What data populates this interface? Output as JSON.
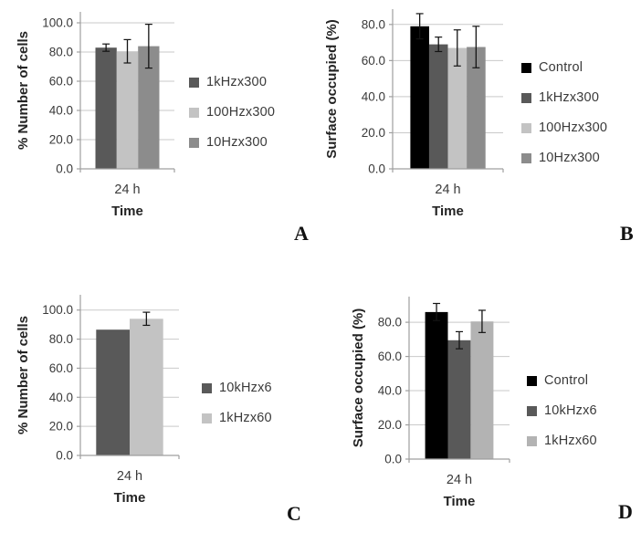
{
  "figure": {
    "description_colors": {
      "black": "#000000",
      "dark_gray": "#595959",
      "medium_gray": "#8c8c8c",
      "light_gray": "#c3c3c3"
    }
  },
  "chart_data": [
    {
      "type": "bar",
      "panel_label": "A",
      "ylabel": "% Number of cells",
      "xlabel": "Time",
      "categories": [
        "24 h"
      ],
      "yticks": [
        0,
        20,
        40,
        60,
        80,
        100
      ],
      "ytick_labels": [
        "0.0",
        "20.0",
        "40.0",
        "60.0",
        "80.0",
        "100.0"
      ],
      "ylim": [
        0,
        107.5
      ],
      "grid": true,
      "legend_position": "right",
      "series": [
        {
          "name": "1kHzx300",
          "color": "#595959",
          "values": [
            83
          ],
          "errors": [
            2.5
          ]
        },
        {
          "name": "100Hzx300",
          "color": "#c3c3c3",
          "values": [
            80.5
          ],
          "errors": [
            8
          ]
        },
        {
          "name": "10Hzx300",
          "color": "#8c8c8c",
          "values": [
            84
          ],
          "errors": [
            15
          ]
        }
      ]
    },
    {
      "type": "bar",
      "panel_label": "B",
      "ylabel": "Surface occupied (%)",
      "xlabel": "Time",
      "categories": [
        "24 h"
      ],
      "yticks": [
        0,
        20,
        40,
        60,
        80
      ],
      "ytick_labels": [
        "0.0",
        "20.0",
        "40.0",
        "60.0",
        "80.0"
      ],
      "ylim": [
        0,
        88.5
      ],
      "grid": true,
      "legend_position": "right",
      "series": [
        {
          "name": "Control",
          "color": "#000000",
          "values": [
            79
          ],
          "errors": [
            7
          ]
        },
        {
          "name": "1kHzx300",
          "color": "#595959",
          "values": [
            69
          ],
          "errors": [
            4
          ]
        },
        {
          "name": "100Hzx300",
          "color": "#c3c3c3",
          "values": [
            67
          ],
          "errors": [
            10
          ]
        },
        {
          "name": "10Hzx300",
          "color": "#8c8c8c",
          "values": [
            67.5
          ],
          "errors": [
            11.5
          ]
        }
      ]
    },
    {
      "type": "bar",
      "panel_label": "C",
      "ylabel": "% Number of cells",
      "xlabel": "Time",
      "categories": [
        "24 h"
      ],
      "yticks": [
        0,
        20,
        40,
        60,
        80,
        100
      ],
      "ytick_labels": [
        "0.0",
        "20.0",
        "40.0",
        "60.0",
        "80.0",
        "100.0"
      ],
      "ylim": [
        0,
        110.5
      ],
      "grid": true,
      "legend_position": "right",
      "series": [
        {
          "name": "10kHzx6",
          "color": "#595959",
          "values": [
            86.5
          ],
          "errors": [
            0
          ]
        },
        {
          "name": "1kHzx60",
          "color": "#c3c3c3",
          "values": [
            94
          ],
          "errors": [
            4.5
          ]
        }
      ]
    },
    {
      "type": "bar",
      "panel_label": "D",
      "ylabel": "Surface occupied (%)",
      "xlabel": "Time",
      "categories": [
        "24 h"
      ],
      "yticks": [
        0,
        20,
        40,
        60,
        80
      ],
      "ytick_labels": [
        "0.0",
        "20.0",
        "40.0",
        "60.0",
        "80.0"
      ],
      "ylim": [
        0,
        95
      ],
      "grid": true,
      "legend_position": "right",
      "series": [
        {
          "name": "Control",
          "color": "#000000",
          "values": [
            86
          ],
          "errors": [
            5
          ]
        },
        {
          "name": "10kHzx6",
          "color": "#595959",
          "values": [
            69.5
          ],
          "errors": [
            5
          ]
        },
        {
          "name": "1kHzx60",
          "color": "#b3b3b3",
          "values": [
            80.5
          ],
          "errors": [
            6.5
          ]
        }
      ]
    }
  ]
}
